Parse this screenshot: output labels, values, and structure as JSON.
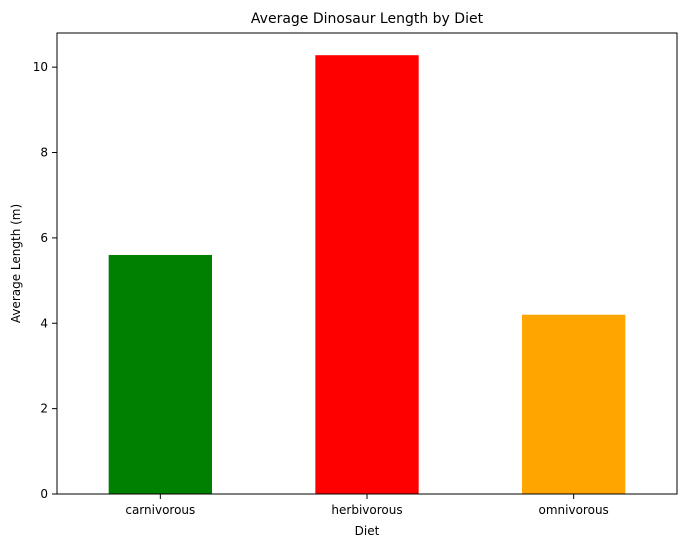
{
  "chart_data": {
    "type": "bar",
    "title": "Average Dinosaur Length by Diet",
    "xlabel": "Diet",
    "ylabel": "Average Length (m)",
    "categories": [
      "carnivorous",
      "herbivorous",
      "omnivorous"
    ],
    "values": [
      5.6,
      10.28,
      4.2
    ],
    "colors": [
      "#008000",
      "#ff0000",
      "#ffa500"
    ],
    "ylim": [
      0,
      10.8
    ],
    "yticks": [
      0,
      2,
      4,
      6,
      8,
      10
    ],
    "grid": false,
    "legend": "none"
  }
}
